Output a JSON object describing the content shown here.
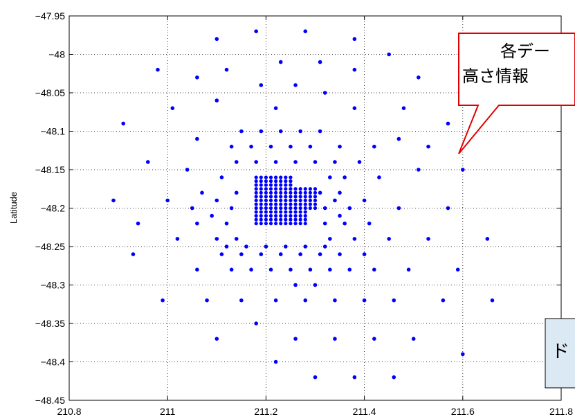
{
  "chart_data": {
    "type": "scatter",
    "title": "",
    "xlabel": "",
    "ylabel": "Latitude",
    "xlim": [
      210.8,
      211.8
    ],
    "ylim": [
      -48.45,
      -47.95
    ],
    "x_ticks": [
      "210.8",
      "211",
      "211.2",
      "211.4",
      "211.6",
      "211.8"
    ],
    "y_ticks": [
      "-47.95",
      "-48",
      "-48.05",
      "-48.1",
      "-48.15",
      "-48.2",
      "-48.25",
      "-48.3",
      "-48.35",
      "-48.4",
      "-48.45"
    ],
    "grid": true,
    "marker_color": "#0000ff",
    "points": [
      {
        "x": 211.18,
        "y": -47.97
      },
      {
        "x": 211.28,
        "y": -47.97
      },
      {
        "x": 211.1,
        "y": -47.98
      },
      {
        "x": 211.38,
        "y": -47.98
      },
      {
        "x": 211.45,
        "y": -48.0
      },
      {
        "x": 211.23,
        "y": -48.01
      },
      {
        "x": 211.31,
        "y": -48.01
      },
      {
        "x": 210.98,
        "y": -48.02
      },
      {
        "x": 211.12,
        "y": -48.02
      },
      {
        "x": 211.38,
        "y": -48.02
      },
      {
        "x": 211.06,
        "y": -48.03
      },
      {
        "x": 211.51,
        "y": -48.03
      },
      {
        "x": 211.19,
        "y": -48.04
      },
      {
        "x": 211.26,
        "y": -48.04
      },
      {
        "x": 211.32,
        "y": -48.05
      },
      {
        "x": 211.1,
        "y": -48.06
      },
      {
        "x": 211.01,
        "y": -48.07
      },
      {
        "x": 211.22,
        "y": -48.07
      },
      {
        "x": 211.38,
        "y": -48.07
      },
      {
        "x": 211.48,
        "y": -48.07
      },
      {
        "x": 210.91,
        "y": -48.09
      },
      {
        "x": 211.57,
        "y": -48.09
      },
      {
        "x": 211.15,
        "y": -48.1
      },
      {
        "x": 211.19,
        "y": -48.1
      },
      {
        "x": 211.23,
        "y": -48.1
      },
      {
        "x": 211.27,
        "y": -48.1
      },
      {
        "x": 211.31,
        "y": -48.1
      },
      {
        "x": 211.06,
        "y": -48.11
      },
      {
        "x": 211.47,
        "y": -48.11
      },
      {
        "x": 211.13,
        "y": -48.12
      },
      {
        "x": 211.17,
        "y": -48.12
      },
      {
        "x": 211.21,
        "y": -48.12
      },
      {
        "x": 211.25,
        "y": -48.12
      },
      {
        "x": 211.29,
        "y": -48.12
      },
      {
        "x": 211.35,
        "y": -48.12
      },
      {
        "x": 211.42,
        "y": -48.12
      },
      {
        "x": 211.53,
        "y": -48.12
      },
      {
        "x": 211.14,
        "y": -48.14
      },
      {
        "x": 211.18,
        "y": -48.14
      },
      {
        "x": 211.22,
        "y": -48.14
      },
      {
        "x": 211.26,
        "y": -48.14
      },
      {
        "x": 211.3,
        "y": -48.14
      },
      {
        "x": 211.34,
        "y": -48.14
      },
      {
        "x": 210.96,
        "y": -48.14
      },
      {
        "x": 211.39,
        "y": -48.14
      },
      {
        "x": 211.04,
        "y": -48.15
      },
      {
        "x": 211.51,
        "y": -48.15
      },
      {
        "x": 211.6,
        "y": -48.15
      },
      {
        "x": 211.11,
        "y": -48.16
      },
      {
        "x": 211.33,
        "y": -48.16
      },
      {
        "x": 211.36,
        "y": -48.16
      },
      {
        "x": 211.43,
        "y": -48.16
      },
      {
        "x": 211.07,
        "y": -48.18
      },
      {
        "x": 211.14,
        "y": -48.18
      },
      {
        "x": 211.31,
        "y": -48.18
      },
      {
        "x": 211.35,
        "y": -48.18
      },
      {
        "x": 210.89,
        "y": -48.19
      },
      {
        "x": 211.0,
        "y": -48.19
      },
      {
        "x": 211.1,
        "y": -48.19
      },
      {
        "x": 211.34,
        "y": -48.19
      },
      {
        "x": 211.4,
        "y": -48.19
      },
      {
        "x": 211.05,
        "y": -48.2
      },
      {
        "x": 211.13,
        "y": -48.2
      },
      {
        "x": 211.32,
        "y": -48.2
      },
      {
        "x": 211.37,
        "y": -48.2
      },
      {
        "x": 211.47,
        "y": -48.2
      },
      {
        "x": 211.57,
        "y": -48.2
      },
      {
        "x": 211.09,
        "y": -48.21
      },
      {
        "x": 211.35,
        "y": -48.21
      },
      {
        "x": 210.94,
        "y": -48.22
      },
      {
        "x": 211.06,
        "y": -48.22
      },
      {
        "x": 211.12,
        "y": -48.22
      },
      {
        "x": 211.32,
        "y": -48.22
      },
      {
        "x": 211.36,
        "y": -48.22
      },
      {
        "x": 211.41,
        "y": -48.22
      },
      {
        "x": 211.02,
        "y": -48.24
      },
      {
        "x": 211.1,
        "y": -48.24
      },
      {
        "x": 211.14,
        "y": -48.24
      },
      {
        "x": 211.33,
        "y": -48.24
      },
      {
        "x": 211.38,
        "y": -48.24
      },
      {
        "x": 211.45,
        "y": -48.24
      },
      {
        "x": 211.53,
        "y": -48.24
      },
      {
        "x": 211.65,
        "y": -48.24
      },
      {
        "x": 211.12,
        "y": -48.25
      },
      {
        "x": 211.16,
        "y": -48.25
      },
      {
        "x": 211.2,
        "y": -48.25
      },
      {
        "x": 211.24,
        "y": -48.25
      },
      {
        "x": 211.28,
        "y": -48.25
      },
      {
        "x": 211.32,
        "y": -48.25
      },
      {
        "x": 210.93,
        "y": -48.26
      },
      {
        "x": 211.11,
        "y": -48.26
      },
      {
        "x": 211.15,
        "y": -48.26
      },
      {
        "x": 211.19,
        "y": -48.26
      },
      {
        "x": 211.23,
        "y": -48.26
      },
      {
        "x": 211.27,
        "y": -48.26
      },
      {
        "x": 211.31,
        "y": -48.26
      },
      {
        "x": 211.35,
        "y": -48.26
      },
      {
        "x": 211.4,
        "y": -48.26
      },
      {
        "x": 211.06,
        "y": -48.28
      },
      {
        "x": 211.13,
        "y": -48.28
      },
      {
        "x": 211.17,
        "y": -48.28
      },
      {
        "x": 211.21,
        "y": -48.28
      },
      {
        "x": 211.25,
        "y": -48.28
      },
      {
        "x": 211.29,
        "y": -48.28
      },
      {
        "x": 211.33,
        "y": -48.28
      },
      {
        "x": 211.37,
        "y": -48.28
      },
      {
        "x": 211.42,
        "y": -48.28
      },
      {
        "x": 211.49,
        "y": -48.28
      },
      {
        "x": 211.59,
        "y": -48.28
      },
      {
        "x": 211.26,
        "y": -48.3
      },
      {
        "x": 211.3,
        "y": -48.3
      },
      {
        "x": 210.99,
        "y": -48.32
      },
      {
        "x": 211.08,
        "y": -48.32
      },
      {
        "x": 211.15,
        "y": -48.32
      },
      {
        "x": 211.22,
        "y": -48.32
      },
      {
        "x": 211.28,
        "y": -48.32
      },
      {
        "x": 211.34,
        "y": -48.32
      },
      {
        "x": 211.4,
        "y": -48.32
      },
      {
        "x": 211.46,
        "y": -48.32
      },
      {
        "x": 211.56,
        "y": -48.32
      },
      {
        "x": 211.66,
        "y": -48.32
      },
      {
        "x": 211.18,
        "y": -48.35
      },
      {
        "x": 211.1,
        "y": -48.37
      },
      {
        "x": 211.26,
        "y": -48.37
      },
      {
        "x": 211.34,
        "y": -48.37
      },
      {
        "x": 211.42,
        "y": -48.37
      },
      {
        "x": 211.5,
        "y": -48.37
      },
      {
        "x": 211.6,
        "y": -48.39
      },
      {
        "x": 211.22,
        "y": -48.4
      },
      {
        "x": 211.3,
        "y": -48.42
      },
      {
        "x": 211.38,
        "y": -48.42
      },
      {
        "x": 211.46,
        "y": -48.42
      }
    ],
    "dense_cluster": {
      "x_range": [
        211.18,
        211.3
      ],
      "y_range": [
        -48.22,
        -48.16
      ]
    }
  },
  "callout": {
    "line1": "各デー",
    "line2": "高さ情報"
  },
  "side_box": {
    "text": "ド"
  }
}
